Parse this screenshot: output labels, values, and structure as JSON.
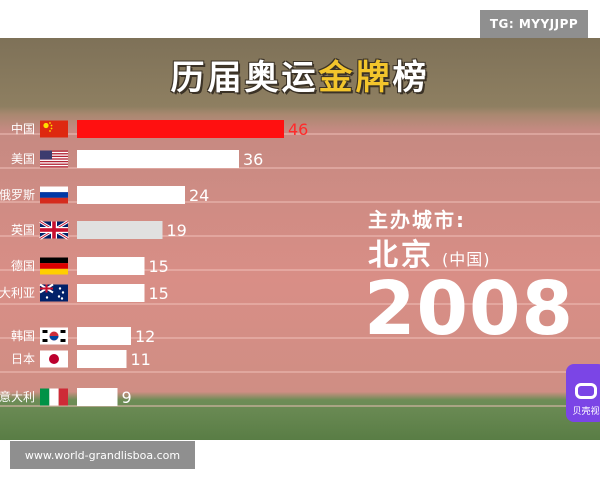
{
  "watermark_top": "TG: MYYJJPP",
  "watermark_bottom": "www.world-grandlisboa.com",
  "title_part1": "历届奥运",
  "title_part2": "金牌",
  "title_part3": "榜",
  "host_label": "主办城市:",
  "host_city": "北京",
  "host_country": "(中国)",
  "host_year": "2008",
  "badge_text": "贝壳视",
  "colors": {
    "top_bar": "#ff1010",
    "bar": "#ffffff",
    "bar_gb": "#e0e0e0",
    "title_gold": "#f3c52c",
    "track": "#d98e86"
  },
  "chart_data": {
    "type": "bar",
    "orientation": "horizontal",
    "title": "历届奥运金牌榜",
    "categories": [
      "中国",
      "美国",
      "俄罗斯",
      "英国",
      "德国",
      "澳大利亚",
      "韩国",
      "日本",
      "意大利"
    ],
    "values": [
      46,
      36,
      24,
      19,
      15,
      15,
      12,
      11,
      9
    ],
    "flags": [
      "cn-flag",
      "us-flag",
      "ru-flag",
      "gb-flag",
      "de-flag",
      "au-flag",
      "kr-flag",
      "jp-flag",
      "it-flag"
    ],
    "xlim": [
      0,
      46
    ],
    "grid": false,
    "legend": "none"
  }
}
